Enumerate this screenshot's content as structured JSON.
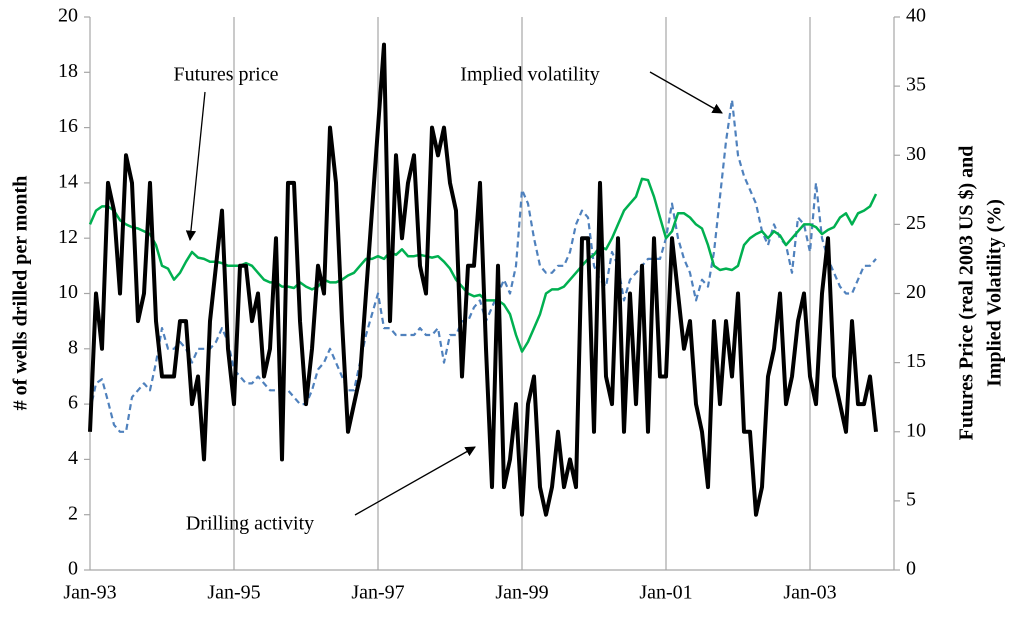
{
  "chart_data": {
    "type": "line",
    "y_label": "# of wells drilled per month",
    "y2_label": [
      "Futures Price (real 2003 US $) and",
      "Implied Volatility (%)"
    ],
    "categories": [
      "Jan-93",
      null,
      null,
      null,
      null,
      null,
      null,
      null,
      null,
      null,
      null,
      null,
      null,
      null,
      null,
      null,
      null,
      null,
      null,
      null,
      null,
      null,
      null,
      null,
      "Jan-95",
      null,
      null,
      null,
      null,
      null,
      null,
      null,
      null,
      null,
      null,
      null,
      null,
      null,
      null,
      null,
      null,
      null,
      null,
      null,
      null,
      null,
      null,
      null,
      "Jan-97",
      null,
      null,
      null,
      null,
      null,
      null,
      null,
      null,
      null,
      null,
      null,
      null,
      null,
      null,
      null,
      null,
      null,
      null,
      null,
      null,
      null,
      null,
      null,
      "Jan-99",
      null,
      null,
      null,
      null,
      null,
      null,
      null,
      null,
      null,
      null,
      null,
      null,
      null,
      null,
      null,
      null,
      null,
      null,
      null,
      null,
      null,
      null,
      null,
      "Jan-01",
      null,
      null,
      null,
      null,
      null,
      null,
      null,
      null,
      null,
      null,
      null,
      null,
      null,
      null,
      null,
      null,
      null,
      null,
      null,
      null,
      null,
      null,
      null,
      "Jan-03",
      null,
      null,
      null,
      null,
      null,
      null,
      null,
      null,
      null,
      null,
      null
    ],
    "series": [
      {
        "name": "Drilling activity",
        "color": "#000000",
        "width": 4,
        "dashed": false,
        "values": [
          5,
          10,
          8,
          14,
          13,
          10,
          15,
          14,
          9,
          10,
          14,
          9,
          7,
          7,
          7,
          9,
          9,
          6,
          7,
          4,
          9,
          11,
          13,
          8,
          6,
          11,
          11,
          9,
          10,
          7,
          8,
          12,
          4,
          14,
          14,
          9,
          6,
          8,
          11,
          10,
          16,
          14,
          9,
          5,
          6,
          7,
          10,
          13,
          16,
          19,
          9,
          15,
          12,
          14,
          15,
          11,
          10,
          16,
          15,
          16,
          14,
          13,
          7,
          11,
          11,
          14,
          8,
          3,
          11,
          3,
          4,
          6,
          2,
          6,
          7,
          3,
          2,
          3,
          5,
          3,
          4,
          3,
          12,
          12,
          5,
          14,
          7,
          6,
          12,
          5,
          10,
          6,
          11,
          5,
          12,
          7,
          7,
          12,
          10,
          8,
          9,
          6,
          5,
          3,
          9,
          6,
          9,
          7,
          10,
          5,
          5,
          2,
          3,
          7,
          8,
          10,
          6,
          7,
          9,
          10,
          7,
          6,
          10,
          12,
          7,
          6,
          5,
          9,
          6,
          6,
          7,
          5
        ]
      },
      {
        "name": "Futures price",
        "color": "#00b050",
        "width": 2.5,
        "dashed": false,
        "axis": "y2",
        "values": [
          25,
          26,
          26.3,
          26.3,
          26,
          25.3,
          25,
          24.8,
          24.7,
          24.5,
          24.3,
          23.5,
          22,
          21.8,
          21,
          21.5,
          22.3,
          23,
          22.6,
          22.5,
          22.3,
          22.3,
          22.2,
          22,
          22,
          22,
          22.2,
          22,
          21.5,
          21,
          20.8,
          20.8,
          20.5,
          20.5,
          20.4,
          20.8,
          20.5,
          20.3,
          20.5,
          21,
          20.8,
          20.8,
          21,
          21.3,
          21.5,
          22,
          22.5,
          22.5,
          22.7,
          22.5,
          23,
          22.8,
          23.2,
          22.7,
          22.7,
          22.8,
          22.7,
          22.6,
          22.7,
          22.3,
          21.8,
          21,
          20.5,
          20,
          19.8,
          19.9,
          19.5,
          19.5,
          19.5,
          19.2,
          18.5,
          17,
          15.8,
          16.5,
          17.5,
          18.5,
          20,
          20.3,
          20.3,
          20.5,
          21,
          21.5,
          22,
          22.5,
          22.8,
          23.4,
          23.2,
          24,
          25,
          26,
          26.5,
          27,
          28.3,
          28.2,
          27,
          25.5,
          24,
          24.5,
          25.8,
          25.8,
          25.5,
          25,
          24.7,
          23.5,
          22,
          21.7,
          21.8,
          21.7,
          22,
          23.5,
          24,
          24.3,
          24.5,
          24,
          24.5,
          24.2,
          23.5,
          24,
          24.5,
          25,
          25,
          24.8,
          24.3,
          24.6,
          24.8,
          25.5,
          25.8,
          25,
          25.8,
          26,
          26.3,
          27.2
        ]
      },
      {
        "name": "Implied volatility",
        "color": "#4f81bd",
        "width": 2.2,
        "dashed": true,
        "axis": "y2",
        "values": [
          11.5,
          13.5,
          13.8,
          12.2,
          10.5,
          10,
          10,
          12.5,
          13,
          13.5,
          13,
          15,
          17.5,
          16,
          16,
          16.5,
          16,
          15,
          16,
          16,
          16,
          16.5,
          17.5,
          16.5,
          14.5,
          14,
          13.5,
          13.5,
          14,
          13.5,
          13,
          13,
          13,
          13,
          12.5,
          12,
          12,
          13,
          14.5,
          15,
          16,
          15,
          14,
          13,
          13,
          15,
          17,
          18.5,
          20,
          17.5,
          17.5,
          17,
          17,
          17,
          17,
          17.5,
          17,
          17,
          17.5,
          15,
          17,
          17,
          18,
          18,
          19,
          19.5,
          18,
          19,
          20,
          21,
          20,
          22,
          27.5,
          26.5,
          24,
          22,
          21.5,
          21.5,
          22,
          22,
          23,
          25,
          26,
          25.5,
          22,
          21,
          20.5,
          23,
          22,
          19.5,
          21,
          21.5,
          22,
          22.5,
          22.5,
          22.5,
          24,
          26.5,
          24,
          22.5,
          21.5,
          19.5,
          21,
          20.5,
          23,
          27,
          31,
          34,
          30,
          28.5,
          27.5,
          26.5,
          24.5,
          23.5,
          25,
          24,
          23.5,
          21.5,
          25.5,
          25,
          23,
          28,
          24,
          22.5,
          21.5,
          20.5,
          20,
          20,
          21,
          22,
          22,
          22.5
        ]
      }
    ],
    "ylim": [
      0,
      20
    ],
    "yticks": [
      0,
      2,
      4,
      6,
      8,
      10,
      12,
      14,
      16,
      18,
      20
    ],
    "y2lim": [
      0,
      40
    ],
    "y2ticks": [
      0,
      5,
      10,
      15,
      20,
      25,
      30,
      35,
      40
    ],
    "grid": true
  }
}
